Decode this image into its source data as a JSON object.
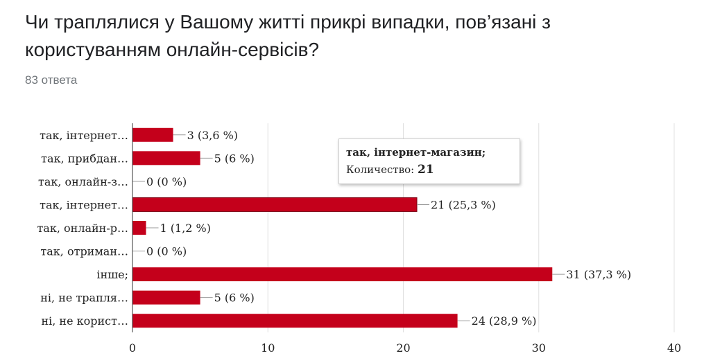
{
  "header": {
    "title": "Чи траплялися у Вашому житті прикрі випадки, пов’язані з користуванням онлайн-сервісів?",
    "responses": "83 ответа"
  },
  "tooltip": {
    "category": "так, інтернет-магазин;",
    "label": "Количество:",
    "value": "21"
  },
  "colors": {
    "bar": "#c4001b",
    "grid": "#e0e0e0",
    "axis": "#333333",
    "text": "#222222"
  },
  "chart_data": {
    "type": "bar",
    "orientation": "horizontal",
    "categories": [
      "так, інтернет…",
      "так, прибдан…",
      "так, онлайн-з…",
      "так, інтернет…",
      "так, онлайн-р…",
      "так, отриман…",
      "інше;",
      "ні, не трапля…",
      "ні, не корист…"
    ],
    "values": [
      3,
      5,
      0,
      21,
      1,
      0,
      31,
      5,
      24
    ],
    "data_labels": [
      "3 (3,6 %)",
      "5 (6 %)",
      "0 (0 %)",
      "21 (25,3 %)",
      "1 (1,2 %)",
      "0 (0 %)",
      "31 (37,3 %)",
      "5 (6 %)",
      "24 (28,9 %)"
    ],
    "xlim": [
      0,
      40
    ],
    "xticks": [
      0,
      10,
      20,
      30,
      40
    ],
    "grid": true,
    "highlighted_index": 3
  }
}
